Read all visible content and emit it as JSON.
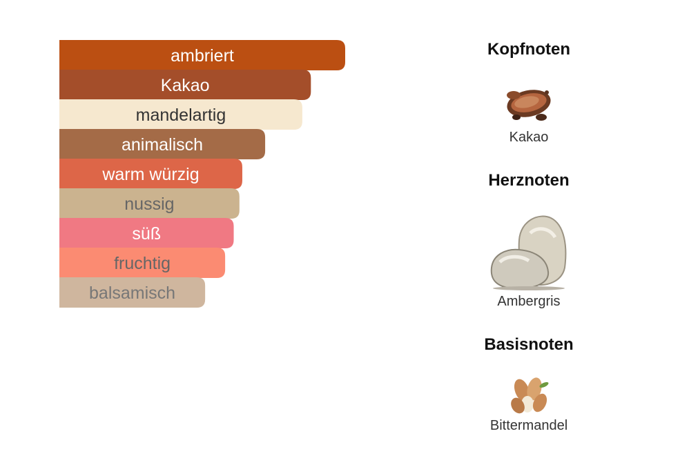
{
  "chart_data": {
    "type": "bar",
    "orientation": "horizontal",
    "title": "",
    "xlabel": "",
    "ylabel": "",
    "categories": [
      "ambriert",
      "Kakao",
      "mandelartig",
      "animalisch",
      "warm würzig",
      "nussig",
      "süß",
      "fruchtig",
      "balsamisch"
    ],
    "values": [
      100,
      88,
      85,
      72,
      64,
      63,
      61,
      58,
      51
    ],
    "xlim": [
      0,
      100
    ],
    "colors": [
      "#bb4f12",
      "#a44e2a",
      "#f6e8cf",
      "#a46b47",
      "#dd6648",
      "#cbb38f",
      "#f07983",
      "#fb8b72",
      "#cfb69e"
    ],
    "label_colors": [
      "#ffffff",
      "#ffffff",
      "#333333",
      "#ffffff",
      "#ffffff",
      "#666666",
      "#ffffff",
      "#666666",
      "#777777"
    ],
    "grid": false,
    "legend": "none"
  },
  "notes": {
    "top": {
      "heading": "Kopfnoten",
      "items": [
        {
          "label": "Kakao",
          "icon": "cocoa-icon"
        }
      ]
    },
    "heart": {
      "heading": "Herznoten",
      "items": [
        {
          "label": "Ambergris",
          "icon": "ambergris-icon"
        }
      ]
    },
    "base": {
      "heading": "Basisnoten",
      "items": [
        {
          "label": "Bittermandel",
          "icon": "almond-icon"
        }
      ]
    }
  }
}
